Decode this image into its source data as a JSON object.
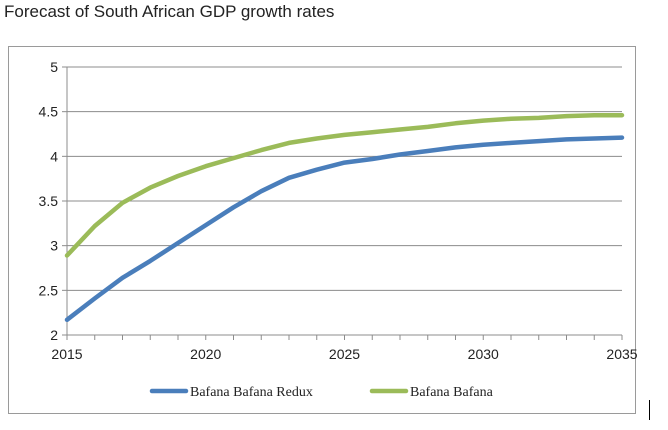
{
  "chart_data": {
    "type": "line",
    "title": "Forecast of South African GDP growth rates",
    "xlabel": "",
    "ylabel": "",
    "xlim": [
      2015,
      2035
    ],
    "ylim": [
      2,
      5
    ],
    "x_ticks": [
      "2015",
      "2020",
      "2025",
      "2030",
      "2035"
    ],
    "y_ticks": [
      "5",
      "4.5",
      "4",
      "3.5",
      "3",
      "2.5",
      "2"
    ],
    "grid": "horizontal",
    "legend_position": "bottom",
    "x": [
      2015,
      2016,
      2017,
      2018,
      2019,
      2020,
      2021,
      2022,
      2023,
      2024,
      2025,
      2026,
      2027,
      2028,
      2029,
      2030,
      2031,
      2032,
      2033,
      2034,
      2035
    ],
    "series": [
      {
        "name": "Bafana Bafana Redux",
        "color": "#4a7ebb",
        "values": [
          2.17,
          2.41,
          2.64,
          2.83,
          3.03,
          3.23,
          3.43,
          3.61,
          3.76,
          3.85,
          3.93,
          3.97,
          4.02,
          4.06,
          4.1,
          4.13,
          4.15,
          4.17,
          4.19,
          4.2,
          4.21
        ]
      },
      {
        "name": "Bafana Bafana",
        "color": "#9bbb59",
        "values": [
          2.89,
          3.22,
          3.48,
          3.65,
          3.78,
          3.89,
          3.98,
          4.07,
          4.15,
          4.2,
          4.24,
          4.27,
          4.3,
          4.33,
          4.37,
          4.4,
          4.42,
          4.43,
          4.45,
          4.46,
          4.46
        ]
      }
    ]
  },
  "colors": {
    "gridline": "#8c8c8c",
    "axis": "#8c8c8c",
    "frame": "#9a9a9a"
  }
}
